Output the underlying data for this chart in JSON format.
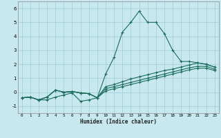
{
  "xlabel": "Humidex (Indice chaleur)",
  "bg_color": "#c8e8f0",
  "grid_color": "#a0c8d8",
  "line_color": "#1a6b5a",
  "xlim": [
    -0.5,
    23.5
  ],
  "ylim": [
    -1.5,
    6.5
  ],
  "xticks": [
    0,
    1,
    2,
    3,
    4,
    5,
    6,
    7,
    8,
    9,
    10,
    11,
    12,
    13,
    14,
    15,
    16,
    17,
    18,
    19,
    20,
    21,
    22,
    23
  ],
  "yticks": [
    -1,
    0,
    1,
    2,
    3,
    4,
    5,
    6
  ],
  "line1_x": [
    0,
    1,
    2,
    3,
    4,
    5,
    6,
    7,
    8,
    9,
    10,
    11,
    12,
    13,
    14,
    15,
    16,
    17,
    18,
    19,
    20,
    21,
    22,
    23
  ],
  "line1_y": [
    -0.4,
    -0.35,
    -0.55,
    -0.55,
    -0.35,
    -0.2,
    -0.05,
    -0.65,
    -0.55,
    -0.4,
    1.3,
    2.5,
    4.3,
    5.0,
    5.8,
    5.0,
    5.0,
    4.2,
    3.0,
    2.2,
    2.2,
    2.1,
    2.0,
    1.8
  ],
  "line2_x": [
    0,
    1,
    2,
    3,
    4,
    5,
    6,
    7,
    8,
    9,
    10,
    11,
    12,
    13,
    14,
    15,
    16,
    17,
    18,
    19,
    20,
    21,
    22,
    23
  ],
  "line2_y": [
    -0.4,
    -0.35,
    -0.55,
    -0.35,
    0.15,
    0.0,
    0.05,
    -0.05,
    -0.1,
    -0.4,
    0.4,
    0.55,
    0.75,
    0.95,
    1.1,
    1.25,
    1.4,
    1.55,
    1.65,
    1.8,
    1.95,
    2.1,
    2.0,
    1.8
  ],
  "line3_x": [
    0,
    1,
    2,
    3,
    4,
    5,
    6,
    7,
    8,
    9,
    10,
    11,
    12,
    13,
    14,
    15,
    16,
    17,
    18,
    19,
    20,
    21,
    22,
    23
  ],
  "line3_y": [
    -0.4,
    -0.35,
    -0.55,
    -0.35,
    0.15,
    0.0,
    0.05,
    -0.05,
    -0.1,
    -0.4,
    0.25,
    0.4,
    0.55,
    0.7,
    0.85,
    1.0,
    1.15,
    1.3,
    1.45,
    1.6,
    1.75,
    1.85,
    1.85,
    1.65
  ],
  "line4_x": [
    0,
    1,
    2,
    3,
    4,
    5,
    6,
    7,
    8,
    9,
    10,
    11,
    12,
    13,
    14,
    15,
    16,
    17,
    18,
    19,
    20,
    21,
    22,
    23
  ],
  "line4_y": [
    -0.4,
    -0.35,
    -0.55,
    -0.35,
    0.15,
    0.0,
    0.05,
    -0.05,
    -0.1,
    -0.4,
    0.1,
    0.25,
    0.4,
    0.55,
    0.7,
    0.85,
    1.0,
    1.15,
    1.3,
    1.45,
    1.6,
    1.72,
    1.72,
    1.55
  ]
}
